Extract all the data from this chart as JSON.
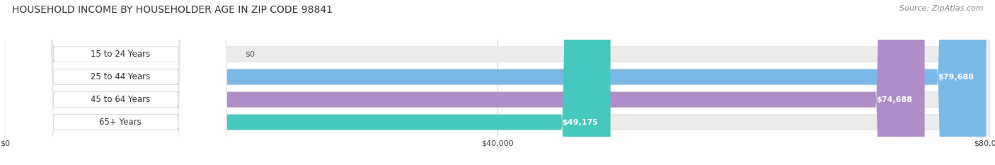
{
  "title": "HOUSEHOLD INCOME BY HOUSEHOLDER AGE IN ZIP CODE 98841",
  "source": "Source: ZipAtlas.com",
  "categories": [
    "15 to 24 Years",
    "25 to 44 Years",
    "45 to 64 Years",
    "65+ Years"
  ],
  "values": [
    0,
    79688,
    74688,
    49175
  ],
  "bar_colors": [
    "#f4a0a0",
    "#7ab8e8",
    "#b08cc8",
    "#45c8c0"
  ],
  "bar_bg_color": "#ebebeb",
  "value_labels": [
    "$0",
    "$79,688",
    "$74,688",
    "$49,175"
  ],
  "xlim_max": 80000,
  "xticks": [
    0,
    40000,
    80000
  ],
  "xtick_labels": [
    "$0",
    "$40,000",
    "$80,000"
  ],
  "title_fontsize": 10,
  "source_fontsize": 8,
  "bar_height": 0.68,
  "background_color": "#ffffff",
  "grid_color": "#d0d0d0",
  "text_color": "#444444",
  "source_color": "#888888"
}
